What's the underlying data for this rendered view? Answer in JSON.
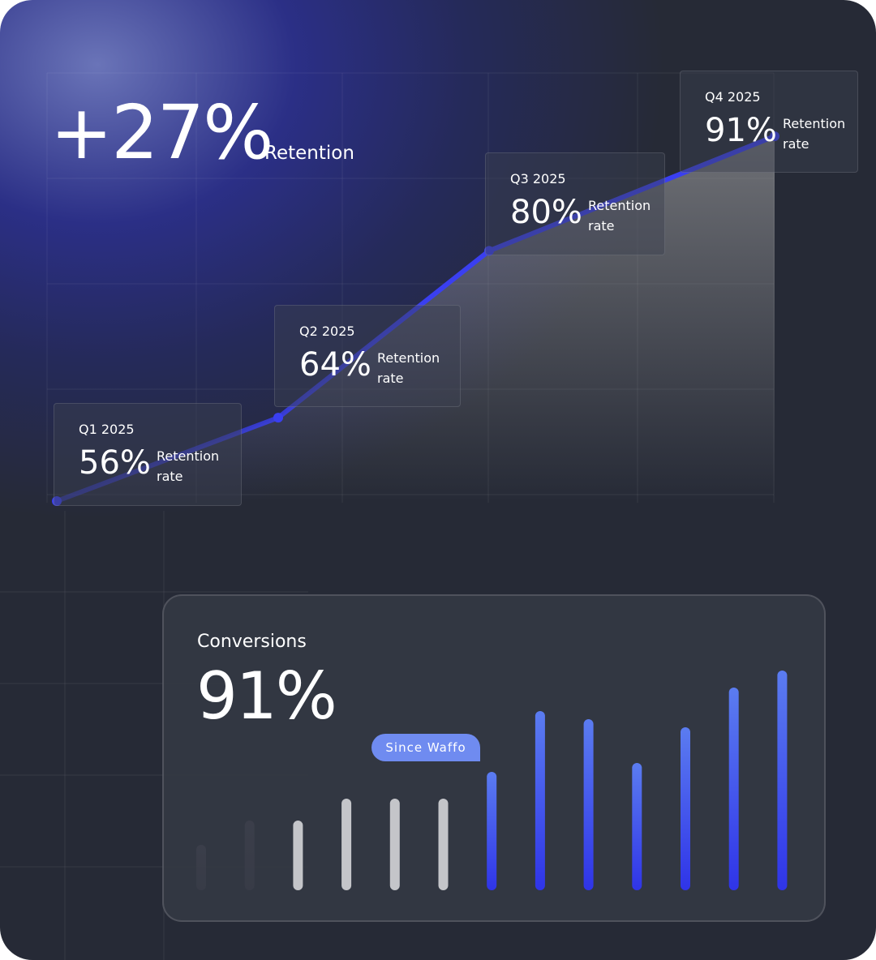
{
  "header": {
    "value": "+27%",
    "label": "Retention"
  },
  "chart_data": [
    {
      "type": "line",
      "categories": [
        "Q1 2025",
        "Q2 2025",
        "Q3 2025",
        "Q4 2025"
      ],
      "values": [
        56,
        64,
        80,
        91
      ],
      "value_labels": [
        "56%",
        "64%",
        "80%",
        "91%"
      ],
      "point_label": "Retention rate",
      "color": "#3a3ff0"
    },
    {
      "type": "bar",
      "title": "Conversions",
      "headline": "91%",
      "annotation": "Since Waffo",
      "values": [
        56,
        86,
        86,
        113,
        113,
        113,
        146,
        221,
        211,
        157,
        201,
        250,
        271
      ],
      "colors": [
        "#3b3e4a",
        "#3b3e4a",
        "#c4c5c9",
        "#c4c5c9",
        "#c4c5c9",
        "#c4c5c9",
        "#5b7cf0",
        "#5b7cf0",
        "#5b7cf0",
        "#5b7cf0",
        "#5b7cf0",
        "#5b7cf0",
        "#5b7cf0"
      ]
    }
  ]
}
